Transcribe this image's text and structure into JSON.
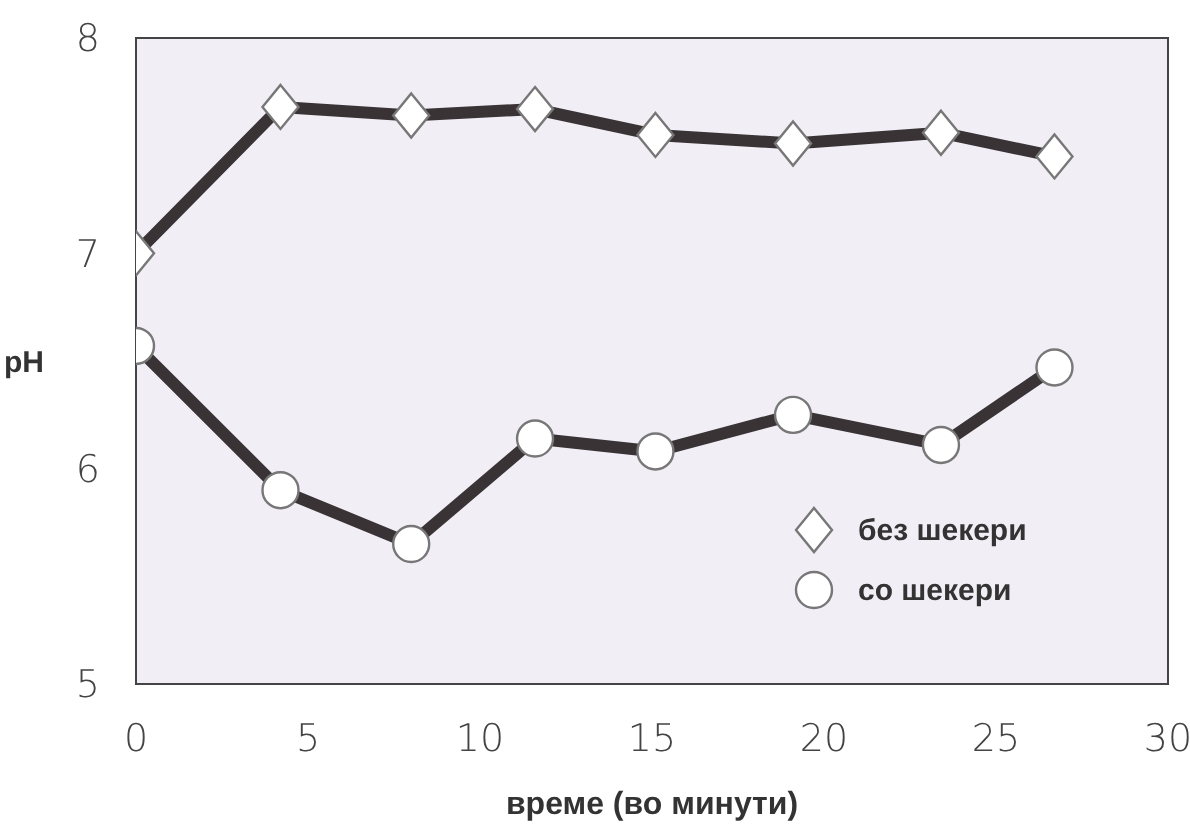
{
  "chart_data": {
    "type": "line",
    "xlabel": "време (во минути)",
    "ylabel": "pH",
    "x": [
      0,
      4.2,
      8,
      11.6,
      15.1,
      19.1,
      23.4,
      26.7
    ],
    "series": [
      {
        "name": "без шекери",
        "color": "#3a3335",
        "marker": "diamond",
        "values": [
          7.0,
          7.68,
          7.64,
          7.67,
          7.55,
          7.51,
          7.56,
          7.45
        ]
      },
      {
        "name": "со шекери",
        "color": "#3a3335",
        "marker": "circle",
        "values": [
          6.57,
          5.9,
          5.65,
          6.14,
          6.08,
          6.25,
          6.11,
          6.47
        ]
      }
    ],
    "xlim": [
      0,
      30
    ],
    "xticks": [
      0,
      5,
      10,
      15,
      20,
      25,
      30
    ],
    "ylim": [
      5,
      8
    ],
    "yticks": [
      5,
      6,
      7,
      8
    ],
    "legend": "bottom right",
    "line_style": "solid"
  }
}
